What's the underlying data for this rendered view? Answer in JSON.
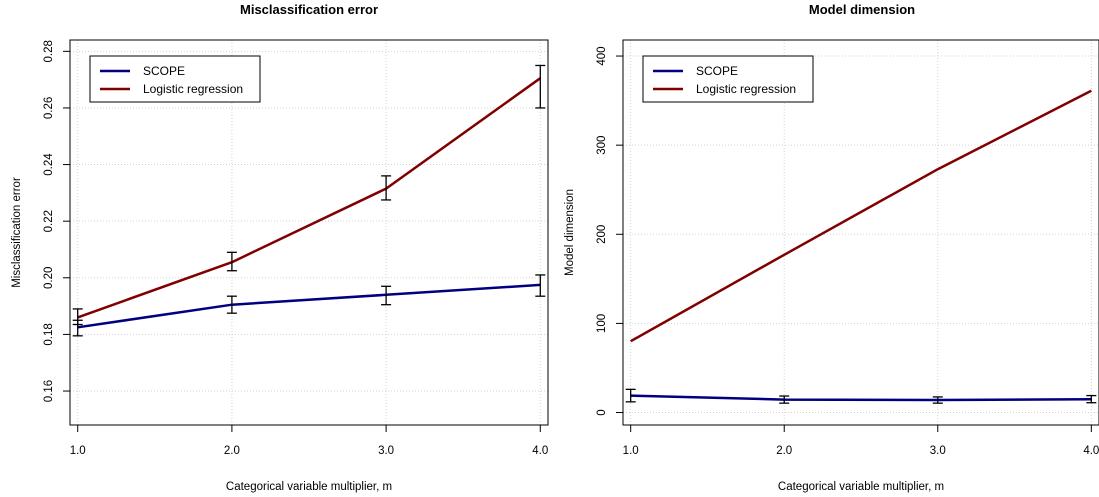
{
  "colors": {
    "scope": "#000080",
    "logistic": "#800000",
    "grid": "#d3d3d3",
    "errorbar": "#000000"
  },
  "chart_data": [
    {
      "type": "line",
      "title": "Misclassification error",
      "xlabel": "Categorical variable multiplier, m",
      "ylabel": "Misclassification error",
      "xlim": [
        0.95,
        4.05
      ],
      "ylim": [
        0.148,
        0.284
      ],
      "xticks": [
        1,
        2,
        3,
        4
      ],
      "xtick_labels": [
        "1.0",
        "2.0",
        "3.0",
        "4.0"
      ],
      "yticks": [
        0.16,
        0.18,
        0.2,
        0.22,
        0.24,
        0.26,
        0.28
      ],
      "ytick_labels": [
        "0.16",
        "0.18",
        "0.20",
        "0.22",
        "0.24",
        "0.26",
        "0.28"
      ],
      "grid": true,
      "legend_position": "top-left",
      "x": [
        1,
        2,
        3,
        4
      ],
      "series": [
        {
          "name": "SCOPE",
          "color_key": "scope",
          "values": [
            0.1825,
            0.1905,
            0.194,
            0.1975
          ],
          "err_low": [
            0.1795,
            0.1875,
            0.1905,
            0.1935
          ],
          "err_high": [
            0.185,
            0.1935,
            0.197,
            0.201
          ],
          "errorbars": true
        },
        {
          "name": "Logistic regression",
          "color_key": "logistic",
          "values": [
            0.186,
            0.2055,
            0.2315,
            0.2705
          ],
          "err_low": [
            0.1835,
            0.2025,
            0.2275,
            0.26
          ],
          "err_high": [
            0.189,
            0.209,
            0.236,
            0.275
          ],
          "errorbars": true
        }
      ]
    },
    {
      "type": "line",
      "title": "Model dimension",
      "xlabel": "Categorical variable multiplier, m",
      "ylabel": "Model dimension",
      "xlim": [
        0.95,
        4.05
      ],
      "ylim": [
        -14,
        418
      ],
      "xticks": [
        1,
        2,
        3,
        4
      ],
      "xtick_labels": [
        "1.0",
        "2.0",
        "3.0",
        "4.0"
      ],
      "yticks": [
        0,
        100,
        200,
        300,
        400
      ],
      "ytick_labels": [
        "0",
        "100",
        "200",
        "300",
        "400"
      ],
      "grid": true,
      "legend_position": "top-left",
      "x": [
        1,
        2,
        3,
        4
      ],
      "series": [
        {
          "name": "SCOPE",
          "color_key": "scope",
          "values": [
            19,
            14.5,
            14,
            15
          ],
          "err_low": [
            12,
            10.5,
            10.5,
            11
          ],
          "err_high": [
            26,
            18.5,
            17.5,
            19
          ],
          "errorbars": true
        },
        {
          "name": "Logistic regression",
          "color_key": "logistic",
          "values": [
            80,
            177,
            273,
            361
          ],
          "errorbars": false
        }
      ]
    }
  ]
}
